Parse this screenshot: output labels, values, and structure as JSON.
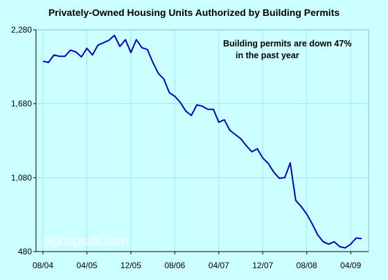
{
  "chart_data": {
    "type": "line",
    "title": "Privately-Owned Housing Units Authorized by Building Permits",
    "annotation": [
      "Building permits are down 47%",
      "in the past year"
    ],
    "watermark": "alphaprofit.com",
    "xlabel": "",
    "ylabel": "",
    "ylim": [
      480,
      2280
    ],
    "yticks": [
      480,
      1080,
      1680,
      2280
    ],
    "ytick_labels": [
      "480",
      "1,080",
      "1,680",
      "2,280"
    ],
    "xtick_labels": [
      "08/04",
      "04/05",
      "12/05",
      "08/06",
      "04/07",
      "12/07",
      "08/08",
      "04/09"
    ],
    "grid": true,
    "series": [
      {
        "color": "#0000CC",
        "x": [
          "08/04",
          "09/04",
          "10/04",
          "11/04",
          "12/04",
          "01/05",
          "02/05",
          "03/05",
          "04/05",
          "05/05",
          "06/05",
          "07/05",
          "08/05",
          "09/05",
          "10/05",
          "11/05",
          "12/05",
          "01/06",
          "02/06",
          "03/06",
          "04/06",
          "05/06",
          "06/06",
          "07/06",
          "08/06",
          "09/06",
          "10/06",
          "11/06",
          "12/06",
          "01/07",
          "02/07",
          "03/07",
          "04/07",
          "05/07",
          "06/07",
          "07/07",
          "08/07",
          "09/07",
          "10/07",
          "11/07",
          "12/07",
          "01/08",
          "02/08",
          "03/08",
          "04/08",
          "05/08",
          "06/08",
          "07/08",
          "08/08",
          "09/08",
          "10/08",
          "11/08",
          "12/08",
          "01/09",
          "02/09",
          "03/09",
          "04/09",
          "05/09",
          "06/09"
        ],
        "values": [
          2025,
          2015,
          2075,
          2065,
          2065,
          2115,
          2100,
          2060,
          2130,
          2075,
          2155,
          2175,
          2195,
          2235,
          2145,
          2200,
          2095,
          2200,
          2135,
          2120,
          2015,
          1925,
          1880,
          1770,
          1740,
          1690,
          1620,
          1585,
          1670,
          1660,
          1635,
          1635,
          1530,
          1550,
          1465,
          1430,
          1395,
          1340,
          1290,
          1315,
          1240,
          1195,
          1125,
          1075,
          1080,
          1200,
          895,
          845,
          785,
          705,
          615,
          560,
          540,
          560,
          520,
          510,
          540,
          590,
          585
        ]
      }
    ]
  }
}
